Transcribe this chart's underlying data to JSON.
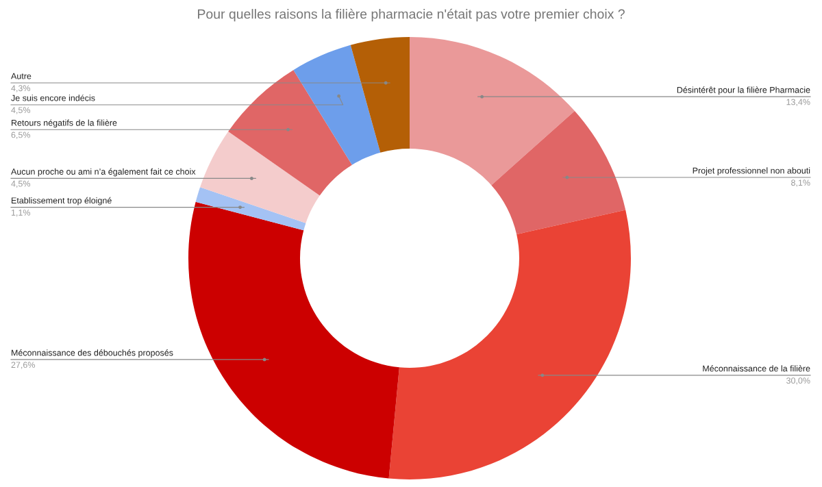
{
  "chart_data": {
    "type": "donut",
    "title": "Pour quelles raisons la filière pharmacie n'était pas votre premier choix ?",
    "categories": [
      "Désintérêt pour la filière Pharmacie",
      "Projet professionnel non abouti",
      "Méconnaissance de la filière",
      "Méconnaissance des débouchés proposés",
      "Etablissement trop éloigné",
      "Aucun proche ou ami n’a également fait ce choix",
      "Retours négatifs de la filière",
      "Je suis encore indécis",
      "Autre"
    ],
    "values": [
      13.4,
      8.1,
      30.0,
      27.6,
      1.1,
      4.5,
      6.5,
      4.5,
      4.3
    ],
    "value_labels": [
      "13,4%",
      "8,1%",
      "30,0%",
      "27,6%",
      "1,1%",
      "4,5%",
      "6,5%",
      "4,5%",
      "4,3%"
    ],
    "colors": [
      "#ea9999",
      "#e06666",
      "#ea4335",
      "#cc0000",
      "#a4c2f4",
      "#f4cccc",
      "#e06666",
      "#6d9eeb",
      "#b45f06"
    ]
  }
}
